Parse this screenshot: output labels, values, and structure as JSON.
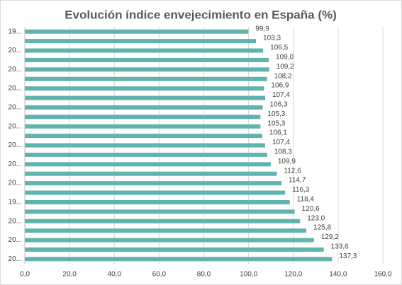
{
  "chart_data": {
    "type": "hbar",
    "title": "Evolución índice envejecimiento en España (%)",
    "categories": [
      "19...",
      null,
      "20...",
      null,
      "20...",
      null,
      "20...",
      null,
      "20...",
      null,
      "20...",
      null,
      "20...",
      null,
      "20...",
      null,
      "20...",
      null,
      "19...",
      null,
      "20...",
      null,
      "20...",
      null,
      "20..."
    ],
    "values": [
      99.9,
      103.3,
      106.5,
      109.0,
      109.2,
      108.2,
      106.9,
      107.4,
      106.3,
      105.3,
      105.3,
      106.1,
      107.4,
      108.3,
      109.9,
      112.6,
      114.7,
      116.3,
      118.4,
      120.6,
      123.0,
      125.8,
      129.2,
      133.6,
      137.3
    ],
    "value_labels": [
      "99,9",
      "103,3",
      "106,5",
      "109,0",
      "109,2",
      "108,2",
      "106,9",
      "107,4",
      "106,3",
      "105,3",
      "105,3",
      "106,1",
      "107,4",
      "108,3",
      "109,9",
      "112,6",
      "114,7",
      "116,3",
      "118,4",
      "120,6",
      "123,0",
      "125,8",
      "129,2",
      "133,6",
      "137,3"
    ],
    "color": "#5fb4ad",
    "xlim": [
      0,
      160
    ],
    "xticks": [
      {
        "value": 0,
        "label": "0,0"
      },
      {
        "value": 20,
        "label": "20,0"
      },
      {
        "value": 40,
        "label": "40,0"
      },
      {
        "value": 60,
        "label": "60,0"
      },
      {
        "value": 80,
        "label": "80,0"
      },
      {
        "value": 100,
        "label": "100,0"
      },
      {
        "value": 120,
        "label": "120,0"
      },
      {
        "value": 140,
        "label": "140,0"
      },
      {
        "value": 160,
        "label": "160,0"
      }
    ],
    "grid": true
  }
}
